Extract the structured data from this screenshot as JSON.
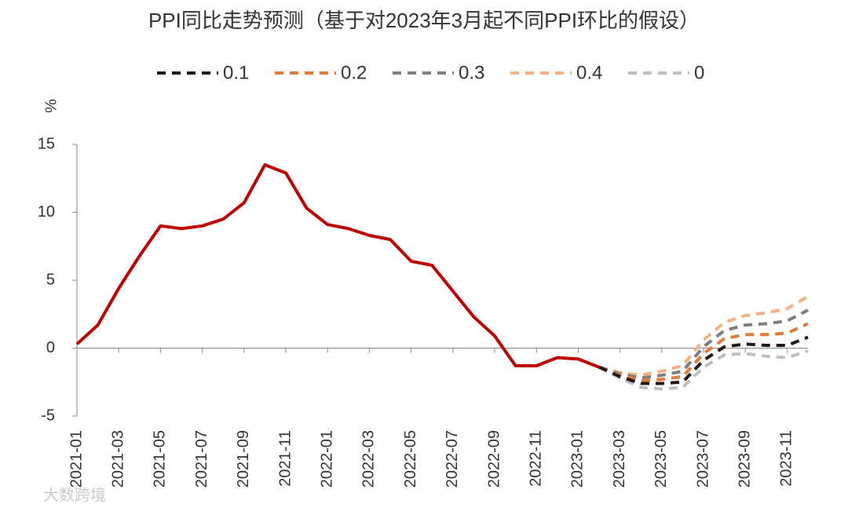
{
  "chart_data": {
    "type": "line",
    "title": "PPI同比走势预测（基于对2023年3月起不同PPI环比的假设）",
    "y_label": "%",
    "watermark": "大数跨境",
    "categories": [
      "2021-01",
      null,
      "2021-03",
      null,
      "2021-05",
      null,
      "2021-07",
      null,
      "2021-09",
      null,
      "2021-11",
      null,
      "2022-01",
      null,
      "2022-03",
      null,
      "2022-05",
      null,
      "2022-07",
      null,
      "2022-09",
      null,
      "2022-11",
      null,
      "2023-01",
      null,
      "2023-03",
      null,
      "2023-05",
      null,
      "2023-07",
      null,
      "2023-09",
      null,
      "2023-11",
      null
    ],
    "ylim": [
      -5,
      15
    ],
    "yticks": [
      -5,
      0,
      5,
      10,
      15
    ],
    "series": [
      {
        "color": "#c00000",
        "dash": false,
        "values": [
          0.3,
          1.7,
          4.4,
          6.8,
          9.0,
          8.8,
          9.0,
          9.5,
          10.7,
          13.5,
          12.9,
          10.3,
          9.1,
          8.8,
          8.3,
          8.0,
          6.4,
          6.1,
          4.2,
          2.3,
          0.9,
          -1.3,
          -1.3,
          -0.7,
          -0.8,
          -1.4,
          null,
          null,
          null,
          null,
          null,
          null,
          null,
          null,
          null,
          null
        ]
      },
      {
        "name": "0.1",
        "color": "#231815",
        "dash": true,
        "values": [
          null,
          null,
          null,
          null,
          null,
          null,
          null,
          null,
          null,
          null,
          null,
          null,
          null,
          null,
          null,
          null,
          null,
          null,
          null,
          null,
          null,
          null,
          null,
          null,
          null,
          -1.4,
          -2.1,
          -2.6,
          -2.6,
          -2.5,
          -0.9,
          0.1,
          0.3,
          0.2,
          0.2,
          0.8
        ]
      },
      {
        "name": "0.2",
        "color": "#e07b39",
        "dash": true,
        "values": [
          null,
          null,
          null,
          null,
          null,
          null,
          null,
          null,
          null,
          null,
          null,
          null,
          null,
          null,
          null,
          null,
          null,
          null,
          null,
          null,
          null,
          null,
          null,
          null,
          null,
          -1.4,
          -2.0,
          -2.4,
          -2.3,
          -2.1,
          -0.4,
          0.7,
          1.0,
          1.0,
          1.1,
          1.8
        ]
      },
      {
        "name": "0.3",
        "color": "#7f7f7f",
        "dash": true,
        "values": [
          null,
          null,
          null,
          null,
          null,
          null,
          null,
          null,
          null,
          null,
          null,
          null,
          null,
          null,
          null,
          null,
          null,
          null,
          null,
          null,
          null,
          null,
          null,
          null,
          null,
          -1.4,
          -1.9,
          -2.2,
          -2.0,
          -1.7,
          0.1,
          1.3,
          1.7,
          1.8,
          2.0,
          2.8
        ]
      },
      {
        "name": "0.4",
        "color": "#f4b183",
        "dash": true,
        "values": [
          null,
          null,
          null,
          null,
          null,
          null,
          null,
          null,
          null,
          null,
          null,
          null,
          null,
          null,
          null,
          null,
          null,
          null,
          null,
          null,
          null,
          null,
          null,
          null,
          null,
          -1.4,
          -1.8,
          -2.0,
          -1.7,
          -1.3,
          0.6,
          1.9,
          2.4,
          2.6,
          2.9,
          3.8
        ]
      },
      {
        "name": "0",
        "color": "#bfbfbf",
        "dash": true,
        "values": [
          null,
          null,
          null,
          null,
          null,
          null,
          null,
          null,
          null,
          null,
          null,
          null,
          null,
          null,
          null,
          null,
          null,
          null,
          null,
          null,
          null,
          null,
          null,
          null,
          null,
          -1.4,
          -2.2,
          -2.9,
          -3.0,
          -2.9,
          -1.4,
          -0.5,
          -0.4,
          -0.6,
          -0.7,
          -0.2
        ]
      }
    ]
  }
}
